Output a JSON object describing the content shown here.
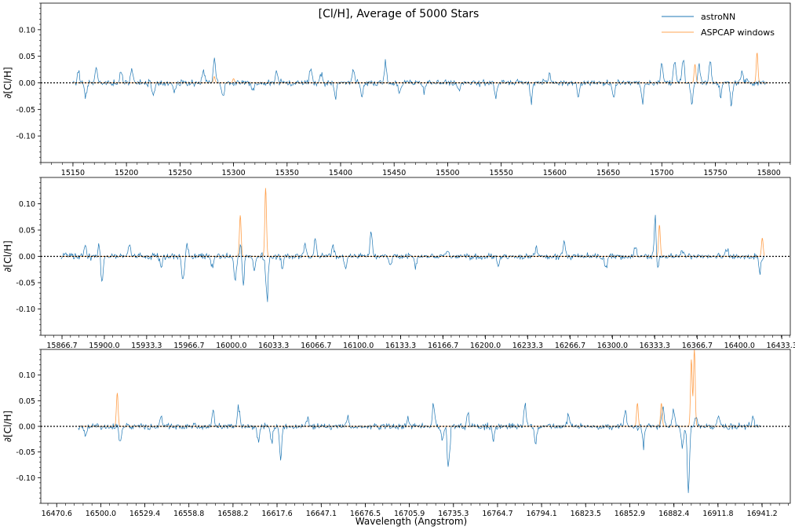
{
  "chart_data": {
    "type": "line",
    "title": "[Cl/H], Average of 5000 Stars",
    "xlabel": "Wavelength (Angstrom)",
    "legend": {
      "placement": "top-right",
      "entries": [
        "astroNN",
        "ASPCAP windows"
      ]
    },
    "colors": {
      "astroNN": "#1f77b4",
      "aspcap": "#ff7f0e",
      "zero_line": "#000000"
    },
    "grid": false,
    "panels": [
      {
        "ylabel": "∂[Cl/H]",
        "xlim": [
          15120,
          15820
        ],
        "ylim": [
          -0.15,
          0.15
        ],
        "yticks": [
          0.1,
          0.05,
          0.0,
          -0.05,
          -0.1
        ],
        "ytick_labels": [
          "0.10",
          "0.05",
          "0.00",
          "-0.05",
          "-0.10"
        ],
        "xticks": [
          15150,
          15200,
          15250,
          15300,
          15350,
          15400,
          15450,
          15500,
          15550,
          15600,
          15650,
          15700,
          15750,
          15800
        ],
        "xtick_labels": [
          "15150",
          "15200",
          "15250",
          "15300",
          "15350",
          "15400",
          "15450",
          "15500",
          "15550",
          "15600",
          "15650",
          "15700",
          "15750",
          "15800"
        ],
        "data_range": [
          15150,
          15800
        ],
        "astroNN_features": [
          [
            15155,
            0.02
          ],
          [
            15162,
            -0.03
          ],
          [
            15172,
            0.03
          ],
          [
            15195,
            0.02
          ],
          [
            15205,
            0.03
          ],
          [
            15225,
            -0.03
          ],
          [
            15245,
            -0.02
          ],
          [
            15272,
            0.03
          ],
          [
            15282,
            0.055
          ],
          [
            15290,
            -0.03
          ],
          [
            15318,
            -0.02
          ],
          [
            15340,
            0.02
          ],
          [
            15372,
            0.035
          ],
          [
            15382,
            0.02
          ],
          [
            15395,
            -0.03
          ],
          [
            15412,
            0.03
          ],
          [
            15420,
            -0.03
          ],
          [
            15442,
            0.045
          ],
          [
            15455,
            -0.02
          ],
          [
            15478,
            -0.02
          ],
          [
            15510,
            -0.02
          ],
          [
            15545,
            -0.03
          ],
          [
            15578,
            -0.04
          ],
          [
            15595,
            0.02
          ],
          [
            15622,
            -0.03
          ],
          [
            15655,
            -0.03
          ],
          [
            15682,
            -0.035
          ],
          [
            15700,
            0.045
          ],
          [
            15712,
            0.055
          ],
          [
            15720,
            0.05
          ],
          [
            15728,
            -0.04
          ],
          [
            15735,
            0.04
          ],
          [
            15745,
            0.045
          ],
          [
            15755,
            -0.03
          ],
          [
            15765,
            -0.04
          ],
          [
            15775,
            0.025
          ]
        ],
        "aspcap_windows": [
          [
            15282,
            0.012
          ],
          [
            15300,
            0.008
          ],
          [
            15731,
            0.035
          ],
          [
            15789,
            0.057
          ]
        ]
      },
      {
        "ylabel": "∂[Cl/H]",
        "xlim": [
          15850,
          16440
        ],
        "ylim": [
          -0.15,
          0.15
        ],
        "yticks": [
          0.1,
          0.05,
          0.0,
          -0.05,
          -0.1
        ],
        "ytick_labels": [
          "0.10",
          "0.05",
          "0.00",
          "-0.05",
          "-0.10"
        ],
        "xticks": [
          15866.7,
          15900.0,
          15933.3,
          15966.7,
          16000.0,
          16033.3,
          16066.7,
          16100.0,
          16133.3,
          16166.7,
          16200.0,
          16233.3,
          16266.7,
          16300.0,
          16333.3,
          16366.7,
          16400.0,
          16433.3
        ],
        "xtick_labels": [
          "15866.7",
          "15900.0",
          "15933.3",
          "15966.7",
          "16000.0",
          "16033.3",
          "16066.7",
          "16100.0",
          "16133.3",
          "16166.7",
          "16200.0",
          "16233.3",
          "16266.7",
          "16300.0",
          "16333.3",
          "16366.7",
          "16400.0",
          "16433.3"
        ],
        "data_range": [
          15866,
          16420
        ],
        "astroNN_features": [
          [
            15885,
            0.025
          ],
          [
            15896,
            0.028
          ],
          [
            15898,
            -0.058
          ],
          [
            15920,
            0.02
          ],
          [
            15945,
            -0.02
          ],
          [
            15962,
            -0.06
          ],
          [
            15965,
            0.025
          ],
          [
            15985,
            -0.02
          ],
          [
            16003,
            -0.05
          ],
          [
            16008,
            0.045
          ],
          [
            16009,
            -0.09
          ],
          [
            16018,
            -0.03
          ],
          [
            16028,
            -0.095
          ],
          [
            16040,
            -0.025
          ],
          [
            16058,
            0.032
          ],
          [
            16066,
            0.03
          ],
          [
            16080,
            0.025
          ],
          [
            16090,
            -0.03
          ],
          [
            16110,
            0.05
          ],
          [
            16125,
            -0.02
          ],
          [
            16145,
            -0.02
          ],
          [
            16170,
            0.015
          ],
          [
            16210,
            -0.02
          ],
          [
            16240,
            0.02
          ],
          [
            16262,
            0.03
          ],
          [
            16295,
            -0.03
          ],
          [
            16318,
            0.02
          ],
          [
            16334,
            0.09
          ],
          [
            16335,
            -0.055
          ],
          [
            16355,
            0.015
          ],
          [
            16390,
            0.015
          ],
          [
            16416,
            -0.03
          ]
        ],
        "aspcap_windows": [
          [
            16007,
            0.078
          ],
          [
            16027,
            0.13
          ],
          [
            16337,
            0.06
          ],
          [
            16418,
            0.035
          ]
        ]
      },
      {
        "ylabel": "∂[Cl/H]",
        "xlim": [
          16460,
          16960
        ],
        "ylim": [
          -0.15,
          0.15
        ],
        "yticks": [
          0.1,
          0.05,
          0.0,
          -0.05,
          -0.1
        ],
        "ytick_labels": [
          "0.10",
          "0.05",
          "0.00",
          "-0.05",
          "-0.10"
        ],
        "xticks": [
          16470.6,
          16500.0,
          16529.4,
          16558.8,
          16588.2,
          16617.6,
          16647.1,
          16676.5,
          16705.9,
          16735.3,
          16764.7,
          16794.1,
          16823.5,
          16852.9,
          16882.4,
          16911.8,
          16941.2
        ],
        "xtick_labels": [
          "16470.6",
          "16500.0",
          "16529.4",
          "16558.8",
          "16588.2",
          "16617.6",
          "16647.1",
          "16676.5",
          "16705.9",
          "16735.3",
          "16764.7",
          "16794.1",
          "16823.5",
          "16852.9",
          "16882.4",
          "16911.8",
          "16941.2"
        ],
        "data_range": [
          16485,
          16940
        ],
        "astroNN_features": [
          [
            16490,
            -0.025
          ],
          [
            16513,
            -0.035
          ],
          [
            16540,
            0.02
          ],
          [
            16575,
            0.035
          ],
          [
            16592,
            0.045
          ],
          [
            16605,
            -0.035
          ],
          [
            16614,
            -0.04
          ],
          [
            16620,
            -0.06
          ],
          [
            16638,
            0.02
          ],
          [
            16665,
            0.02
          ],
          [
            16705,
            0.02
          ],
          [
            16722,
            0.045
          ],
          [
            16728,
            -0.04
          ],
          [
            16732,
            -0.095
          ],
          [
            16745,
            0.03
          ],
          [
            16762,
            -0.03
          ],
          [
            16783,
            0.045
          ],
          [
            16790,
            -0.04
          ],
          [
            16812,
            0.025
          ],
          [
            16850,
            0.035
          ],
          [
            16862,
            -0.04
          ],
          [
            16875,
            0.04
          ],
          [
            16882,
            0.035
          ],
          [
            16888,
            -0.05
          ],
          [
            16892,
            -0.145
          ],
          [
            16897,
            0.02
          ],
          [
            16912,
            0.02
          ],
          [
            16935,
            0.018
          ]
        ],
        "aspcap_windows": [
          [
            16511,
            0.065
          ],
          [
            16858,
            0.045
          ],
          [
            16874,
            0.045
          ],
          [
            16894,
            0.13
          ],
          [
            16896,
            0.15
          ]
        ]
      }
    ]
  }
}
